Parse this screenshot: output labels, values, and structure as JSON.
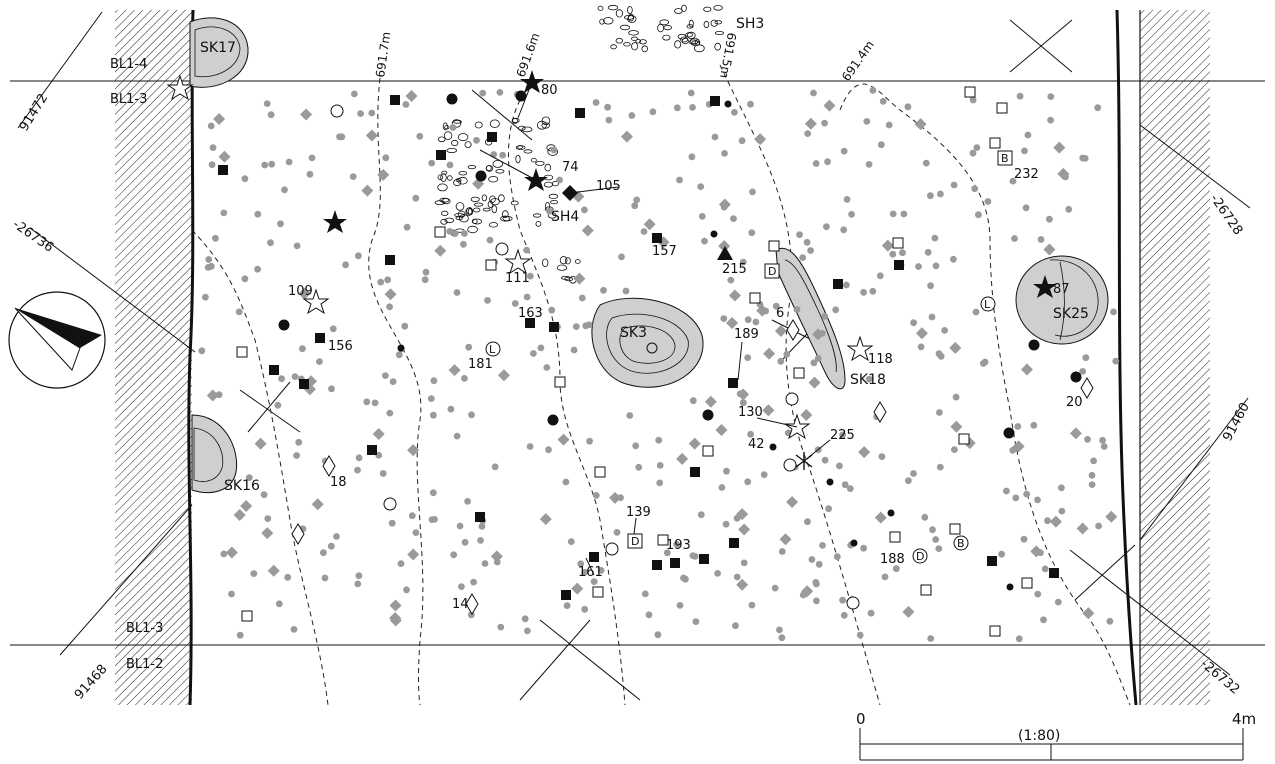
{
  "features": {
    "SK17": "SK17",
    "SK3": "SK3",
    "SK16": "SK16",
    "SK18": "SK18",
    "SK25": "SK25",
    "SH3": "SH3",
    "SH4": "SH4"
  },
  "grid_lines": {
    "bl14_top": "BL1-4",
    "bl13_top": "BL1-3",
    "bl13_bottom": "BL1-3",
    "bl12_bottom": "BL1-2"
  },
  "coordinates": {
    "c91472": "91472",
    "c26736": "-26736",
    "c91468": "91468",
    "c26728": "-26728",
    "c91460": "91460",
    "c26732": "-26732"
  },
  "contours": {
    "c6917": "691.7m",
    "c6916": "691.6m",
    "c6915": "691.5m",
    "c6914": "691.4m"
  },
  "finds": {
    "n80": "80",
    "n74": "74",
    "n105": "105",
    "n157": "157",
    "n215": "215",
    "n111": "111",
    "n109": "109",
    "n156": "156",
    "n163": "163",
    "n181": "181",
    "n6": "6",
    "n189": "189",
    "n118": "118",
    "n87": "87",
    "n20": "20",
    "n130": "130",
    "n42": "42",
    "n225": "225",
    "n18": "18",
    "n139": "139",
    "n193": "193",
    "n161": "161",
    "n188": "188",
    "n14": "14",
    "n232": "232",
    "mark_B1": "B",
    "mark_D1": "D",
    "mark_L1": "L",
    "mark_L2": "L",
    "mark_D2": "D",
    "mark_D3": "D",
    "mark_B2": "B",
    "mark_L3": "L"
  },
  "scale_bar": {
    "zero": "0",
    "end": "4m",
    "ratio": "(1:80)"
  },
  "symbol_colors": {
    "ink": "#111111",
    "gravel_fill": "#9a9a9a",
    "pit_fill": "#cfcfcf"
  }
}
